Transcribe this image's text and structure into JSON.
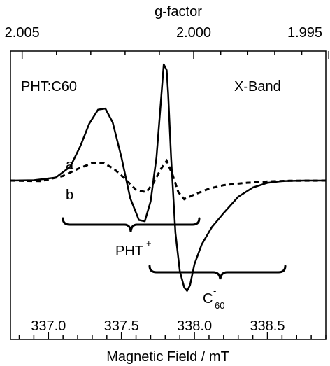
{
  "chart_data": {
    "type": "line",
    "xlabel": "Magnetic Field / mT",
    "top_label": "g-factor",
    "xlim": [
      336.74,
      338.9
    ],
    "ylim": [
      -1.0,
      1.0
    ],
    "x_ticks": [
      337.0,
      337.5,
      338.0,
      338.5
    ],
    "x_tick_labels": [
      "337.0",
      "337.5",
      "338.0",
      "338.5"
    ],
    "top_ticks": [
      2.005,
      2.0,
      1.995
    ],
    "top_tick_labels": [
      "2.005",
      "2.000",
      "1.995"
    ],
    "top_axis_g_to_field": {
      "g": [
        2.005,
        2.0,
        1.995
      ],
      "field": [
        336.82,
        337.995,
        338.92
      ]
    },
    "annotations": {
      "left_title": "PHT:C60",
      "right_title": "X-Band",
      "pht_base": "PHT",
      "pht_sup": "+",
      "c60_base": "C",
      "c60_sup": "-",
      "c60_sub": "60"
    },
    "series": [
      {
        "name": "a",
        "style": "solid",
        "x": [
          336.74,
          336.9,
          337.05,
          337.15,
          337.22,
          337.28,
          337.34,
          337.39,
          337.44,
          337.5,
          337.56,
          337.62,
          337.66,
          337.7,
          337.74,
          337.77,
          337.79,
          337.81,
          337.82,
          337.84,
          337.87,
          337.9,
          337.93,
          337.95,
          337.97,
          338.0,
          338.05,
          338.12,
          338.2,
          338.3,
          338.4,
          338.5,
          338.6,
          338.75,
          338.9
        ],
        "y": [
          0.0,
          0.003,
          0.025,
          0.12,
          0.3,
          0.49,
          0.61,
          0.62,
          0.5,
          0.2,
          -0.15,
          -0.34,
          -0.35,
          -0.18,
          0.2,
          0.68,
          1.0,
          0.95,
          0.75,
          0.2,
          -0.45,
          -0.78,
          -0.92,
          -0.95,
          -0.9,
          -0.72,
          -0.55,
          -0.4,
          -0.28,
          -0.14,
          -0.06,
          -0.02,
          -0.005,
          0.0,
          0.0
        ]
      },
      {
        "name": "b",
        "style": "dashed",
        "x": [
          336.74,
          336.95,
          337.1,
          337.2,
          337.3,
          337.38,
          337.45,
          337.52,
          337.6,
          337.67,
          337.72,
          337.77,
          337.81,
          337.85,
          337.89,
          337.93,
          338.0,
          338.1,
          338.2,
          338.35,
          338.5,
          338.65,
          338.9
        ],
        "y": [
          0.0,
          -0.005,
          0.04,
          0.1,
          0.15,
          0.15,
          0.1,
          0.02,
          -0.08,
          -0.1,
          -0.02,
          0.1,
          0.17,
          0.05,
          -0.1,
          -0.16,
          -0.12,
          -0.07,
          -0.04,
          -0.02,
          -0.008,
          -0.002,
          0.0
        ]
      }
    ]
  }
}
